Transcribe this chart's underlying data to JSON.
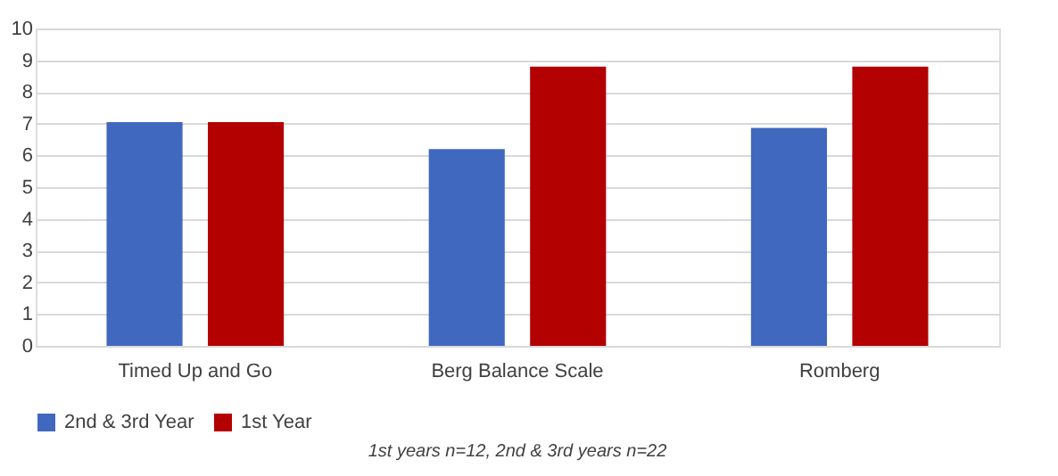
{
  "chart_data": {
    "type": "bar",
    "categories": [
      "Timed Up and Go",
      "Berg Balance Scale",
      "Romberg"
    ],
    "series": [
      {
        "name": "2nd & 3rd Year",
        "color": "#4068bf",
        "values": [
          7.05,
          6.2,
          6.87
        ]
      },
      {
        "name": "1st Year",
        "color": "#b30000",
        "values": [
          7.05,
          8.8,
          8.8
        ]
      }
    ],
    "ylim": [
      0,
      10
    ],
    "yticks": [
      0,
      1,
      2,
      3,
      4,
      5,
      6,
      7,
      8,
      9,
      10
    ],
    "grid": "y",
    "legend": "bottom",
    "annotations": [
      "1st years n=12, 2nd & 3rd years n=22"
    ]
  }
}
